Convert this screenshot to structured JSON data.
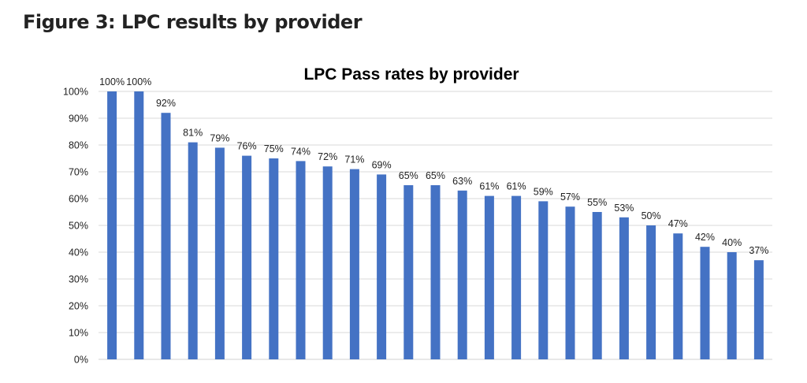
{
  "figure": {
    "caption": "Figure 3: LPC results by provider"
  },
  "chart_data": {
    "type": "bar",
    "title": "LPC Pass rates by provider",
    "xlabel": "",
    "ylabel": "",
    "categories": [
      "",
      "",
      "",
      "",
      "",
      "",
      "",
      "",
      "",
      "",
      "",
      "",
      "",
      "",
      "",
      "",
      "",
      "",
      "",
      "",
      "",
      "",
      "",
      "",
      ""
    ],
    "values": [
      100,
      100,
      92,
      81,
      79,
      76,
      75,
      74,
      72,
      71,
      69,
      65,
      65,
      63,
      61,
      61,
      59,
      57,
      55,
      53,
      50,
      47,
      42,
      40,
      37
    ],
    "data_labels": [
      "100%",
      "100%",
      "92%",
      "81%",
      "79%",
      "76%",
      "75%",
      "74%",
      "72%",
      "71%",
      "69%",
      "65%",
      "65%",
      "63%",
      "61%",
      "61%",
      "59%",
      "57%",
      "55%",
      "53%",
      "50%",
      "47%",
      "42%",
      "40%",
      "37%"
    ],
    "ylim": [
      0,
      100
    ],
    "yticks": [
      0,
      10,
      20,
      30,
      40,
      50,
      60,
      70,
      80,
      90,
      100
    ],
    "ytick_labels": [
      "0%",
      "10%",
      "20%",
      "30%",
      "40%",
      "50%",
      "60%",
      "70%",
      "80%",
      "90%",
      "100%"
    ],
    "grid": true,
    "legend": "none",
    "bar_color": "#4472C4",
    "grid_color": "#D9D9D9"
  }
}
